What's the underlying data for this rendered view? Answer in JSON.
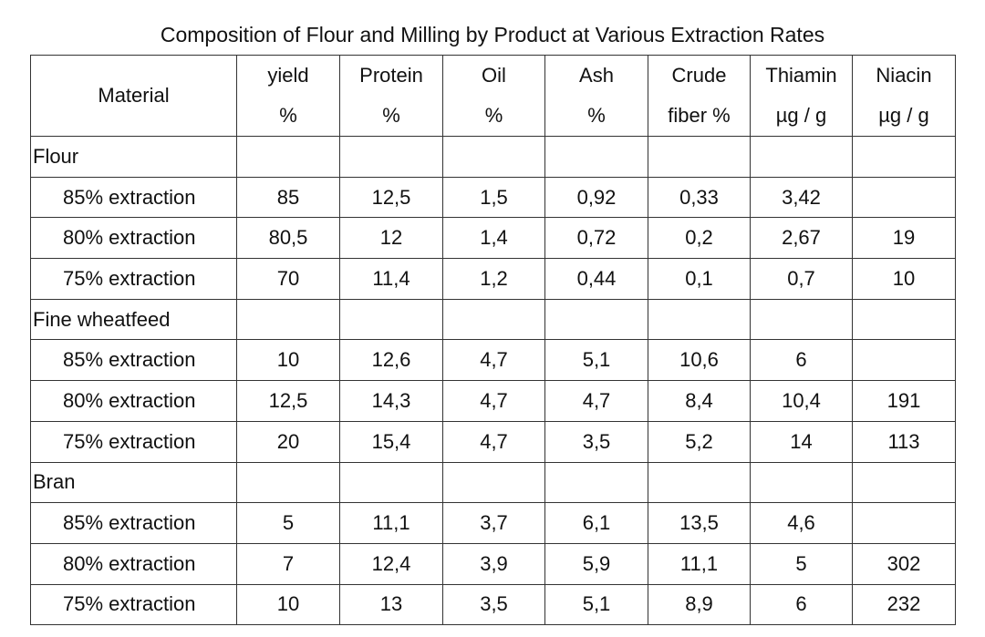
{
  "title": "Composition of Flour and Milling by Product at Various Extraction Rates",
  "header": {
    "material": "Material",
    "columns": [
      {
        "line1": "yield",
        "line2": "%"
      },
      {
        "line1": "Protein",
        "line2": "%"
      },
      {
        "line1": "Oil",
        "line2": "%"
      },
      {
        "line1": "Ash",
        "line2": "%"
      },
      {
        "line1": "Crude",
        "line2": "fiber %"
      },
      {
        "line1": "Thiamin",
        "line2": "µg / g"
      },
      {
        "line1": "Niacin",
        "line2": "µg / g"
      }
    ]
  },
  "rows": [
    {
      "label": "Flour",
      "cells": [
        "",
        "",
        "",
        "",
        "",
        "",
        ""
      ]
    },
    {
      "label": "85% extraction",
      "cells": [
        "85",
        "12,5",
        "1,5",
        "0,92",
        "0,33",
        "3,42",
        ""
      ]
    },
    {
      "label": "80% extraction",
      "cells": [
        "80,5",
        "12",
        "1,4",
        "0,72",
        "0,2",
        "2,67",
        "19"
      ]
    },
    {
      "label": "75% extraction",
      "cells": [
        "70",
        "11,4",
        "1,2",
        "0,44",
        "0,1",
        "0,7",
        "10"
      ]
    },
    {
      "label": "Fine wheatfeed",
      "cells": [
        "",
        "",
        "",
        "",
        "",
        "",
        ""
      ]
    },
    {
      "label": "85% extraction",
      "cells": [
        "10",
        "12,6",
        "4,7",
        "5,1",
        "10,6",
        "6",
        ""
      ]
    },
    {
      "label": "80% extraction",
      "cells": [
        "12,5",
        "14,3",
        "4,7",
        "4,7",
        "8,4",
        "10,4",
        "191"
      ]
    },
    {
      "label": "75% extraction",
      "cells": [
        "20",
        "15,4",
        "4,7",
        "3,5",
        "5,2",
        "14",
        "113"
      ]
    },
    {
      "label": "Bran",
      "cells": [
        "",
        "",
        "",
        "",
        "",
        "",
        ""
      ]
    },
    {
      "label": "85% extraction",
      "cells": [
        "5",
        "11,1",
        "3,7",
        "6,1",
        "13,5",
        "4,6",
        ""
      ]
    },
    {
      "label": "80% extraction",
      "cells": [
        "7",
        "12,4",
        "3,9",
        "5,9",
        "11,1",
        "5",
        "302"
      ]
    },
    {
      "label": "75% extraction",
      "cells": [
        "10",
        "13",
        "3,5",
        "5,1",
        "8,9",
        "6",
        "232"
      ]
    }
  ]
}
